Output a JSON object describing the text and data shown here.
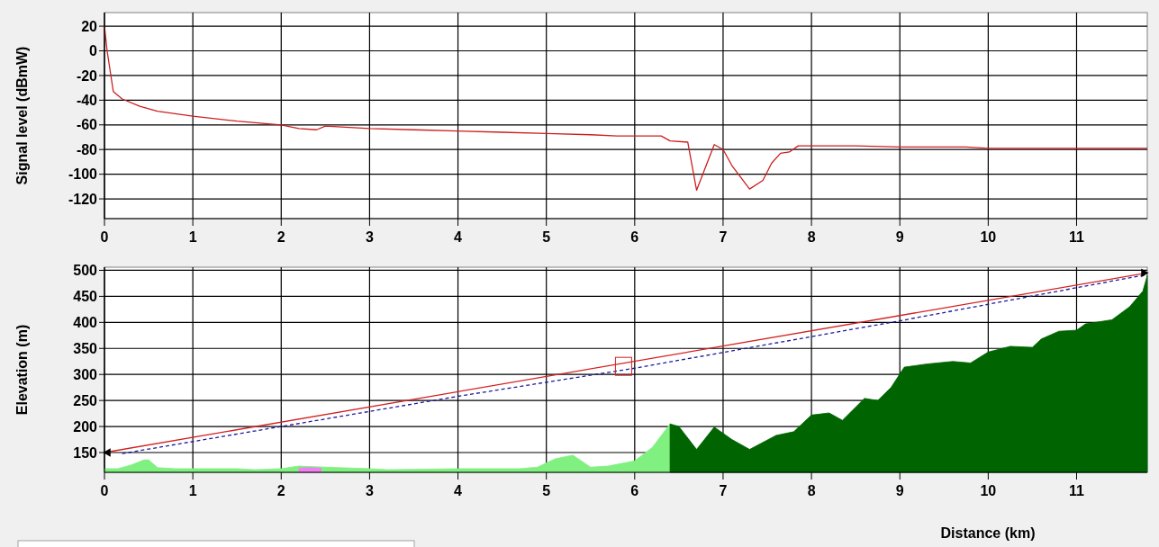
{
  "chart_data": [
    {
      "type": "line",
      "ylabel": "Signal level (dBmW)",
      "xlim": [
        0,
        11.8
      ],
      "ylim": [
        -136,
        31
      ],
      "xticks": [
        0,
        1,
        2,
        3,
        4,
        5,
        6,
        7,
        8,
        9,
        10,
        11
      ],
      "yticks": [
        20,
        0,
        -20,
        -40,
        -60,
        -80,
        -100,
        -120
      ],
      "grid": true,
      "marker": "none",
      "series": [
        {
          "color": "#cc1f1f",
          "x": [
            0,
            0.03,
            0.1,
            0.2,
            0.4,
            0.6,
            1.0,
            1.5,
            2.0,
            2.2,
            2.4,
            2.5,
            3.0,
            3.5,
            4.0,
            4.5,
            5.0,
            5.5,
            5.8,
            6.3,
            6.4,
            6.6,
            6.7,
            6.9,
            7.0,
            7.1,
            7.3,
            7.45,
            7.55,
            7.65,
            7.75,
            7.85,
            8.5,
            9.0,
            9.75,
            10.0,
            11.8
          ],
          "values": [
            20,
            0,
            -33,
            -39,
            -45,
            -49,
            -53,
            -57,
            -60,
            -63,
            -64,
            -61,
            -63,
            -64,
            -65,
            -66,
            -67,
            -68,
            -69,
            -69,
            -73,
            -74,
            -113,
            -76,
            -80,
            -93,
            -112,
            -105,
            -91,
            -83,
            -82,
            -77,
            -77,
            -78,
            -78,
            -79,
            -79
          ]
        }
      ]
    },
    {
      "type": "area",
      "ylabel": "Elevation (m)",
      "xlabel": "Distance (km)",
      "xlim": [
        0,
        11.8
      ],
      "ylim": [
        112,
        506
      ],
      "xticks": [
        0,
        1,
        2,
        3,
        4,
        5,
        6,
        7,
        8,
        9,
        10,
        11
      ],
      "yticks": [
        150,
        200,
        250,
        300,
        350,
        400,
        450,
        500
      ],
      "grid": true,
      "series": [
        {
          "color": "#80f080",
          "x": [
            0,
            0.15,
            0.3,
            0.45,
            0.5,
            0.6,
            0.8,
            1.5,
            1.7,
            2.0,
            2.2,
            2.5,
            3.0,
            3.2,
            4.0,
            4.7,
            4.9,
            5.1,
            5.3,
            5.5,
            5.7,
            6.0,
            6.2,
            6.4
          ],
          "values": [
            119,
            119,
            126,
            136,
            136,
            121,
            119,
            119,
            117,
            119,
            124,
            122,
            119,
            117,
            119,
            119,
            122,
            138,
            145,
            122,
            124,
            134,
            160,
            205
          ]
        },
        {
          "color": "#f080f0",
          "x": [
            2.2,
            2.3,
            2.45
          ],
          "values": [
            120,
            121,
            120
          ]
        },
        {
          "color": "#006400",
          "x": [
            6.4,
            6.5,
            6.7,
            6.9,
            7.1,
            7.3,
            7.6,
            7.8,
            8.0,
            8.2,
            8.35,
            8.6,
            8.75,
            8.9,
            9.05,
            9.3,
            9.6,
            9.8,
            10.0,
            10.25,
            10.5,
            10.6,
            10.8,
            11.0,
            11.1,
            11.4,
            11.6,
            11.75,
            11.8
          ],
          "values": [
            205,
            200,
            156,
            199,
            175,
            156,
            183,
            190,
            222,
            226,
            212,
            254,
            250,
            275,
            314,
            320,
            325,
            322,
            343,
            354,
            352,
            368,
            383,
            385,
            397,
            405,
            430,
            460,
            490
          ]
        },
        {
          "type": "line",
          "color": "#d42020",
          "line_style": "solid",
          "x": [
            0,
            11.8
          ],
          "values": [
            150,
            495
          ]
        },
        {
          "type": "line",
          "color": "#1a1aa0",
          "line_style": "dashed",
          "x": [
            0.2,
            2,
            4,
            6,
            9,
            11.8
          ],
          "values": [
            148,
            200,
            258,
            312,
            403,
            492
          ]
        },
        {
          "type": "scatter",
          "color": "#000000",
          "marker": "triangle",
          "x": [
            0,
            11.8
          ],
          "values": [
            150,
            495
          ]
        }
      ]
    }
  ]
}
